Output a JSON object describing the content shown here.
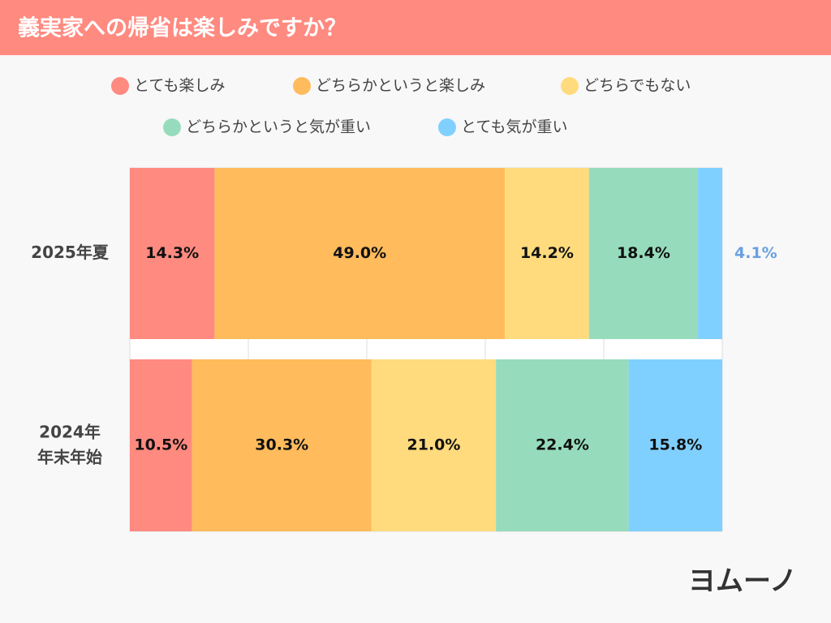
{
  "chart_data": {
    "type": "stacked-bar-horizontal",
    "title": "義実家への帰省は楽しみですか？",
    "categories": [
      "2025年夏",
      "2024年\n年末年始"
    ],
    "series": [
      {
        "name": "とても楽しみ",
        "color": "#ff8a80",
        "values": [
          14.3,
          10.5
        ],
        "value_labels": [
          "14.3%",
          "10.5%"
        ]
      },
      {
        "name": "どちらかというと楽しみ",
        "color": "#ffbb5c",
        "values": [
          49.0,
          30.3
        ],
        "value_labels": [
          "49.0%",
          "30.3%"
        ]
      },
      {
        "name": "どちらでもない",
        "color": "#ffdb7d",
        "values": [
          14.2,
          21.0
        ],
        "value_labels": [
          "14.2%",
          "21.0%"
        ]
      },
      {
        "name": "どちらかというと気が重い",
        "color": "#96dcbc",
        "values": [
          18.4,
          22.4
        ],
        "value_labels": [
          "18.4%",
          "22.4%"
        ]
      },
      {
        "name": "とても気が重い",
        "color": "#80d0ff",
        "values": [
          4.1,
          15.8
        ],
        "value_labels": [
          "4.1%",
          "15.8%"
        ]
      }
    ],
    "xlim": [
      0,
      100
    ],
    "xticks": [
      0,
      20,
      40,
      60,
      80,
      100
    ],
    "grid": true,
    "legend": "top",
    "logo": "ヨムーノ"
  }
}
